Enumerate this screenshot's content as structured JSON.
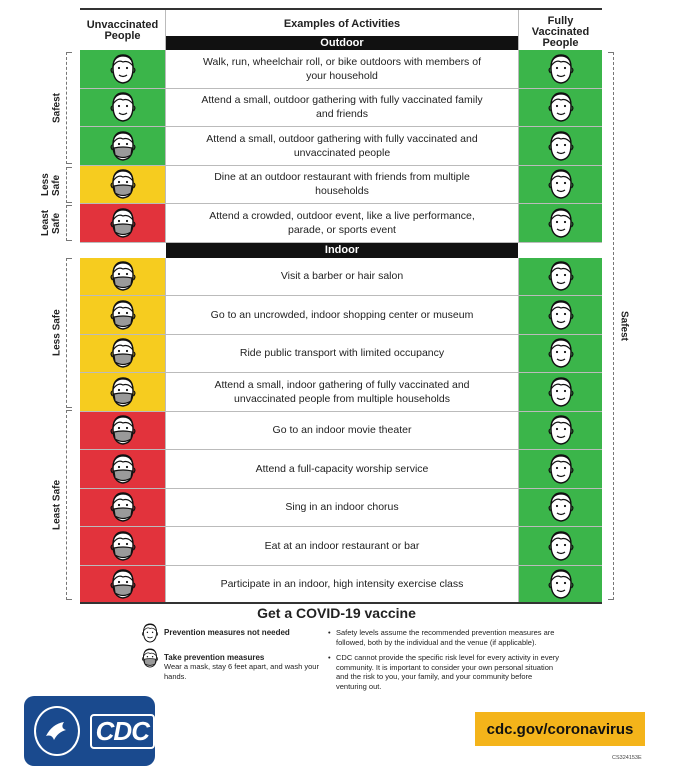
{
  "header": {
    "left": "Unvaccinated People",
    "middle": "Examples of Activities",
    "right": "Fully Vaccinated People"
  },
  "sections": {
    "outdoor": "Outdoor",
    "indoor": "Indoor"
  },
  "side_labels": {
    "safest": "Safest",
    "less_safe": "Less Safe",
    "least_safe": "Least Safe"
  },
  "colors": {
    "green": "#3bb54a",
    "yellow": "#f6cc1f",
    "red": "#e2333c"
  },
  "rows": [
    {
      "activity": "Walk, run, wheelchair roll, or bike outdoors with members of your household",
      "unvaccinated_level": "green",
      "unvaccinated_mask": false
    },
    {
      "activity": "Attend a small, outdoor gathering with fully vaccinated family and friends",
      "unvaccinated_level": "green",
      "unvaccinated_mask": false
    },
    {
      "activity": "Attend a small, outdoor gathering with fully vaccinated and unvaccinated people",
      "unvaccinated_level": "green",
      "unvaccinated_mask": true
    },
    {
      "activity": "Dine at an outdoor restaurant with friends from multiple households",
      "unvaccinated_level": "yellow",
      "unvaccinated_mask": true
    },
    {
      "activity": "Attend a crowded, outdoor event, like a live performance, parade, or sports event",
      "unvaccinated_level": "red",
      "unvaccinated_mask": true
    },
    {
      "activity": "Visit a barber or hair salon",
      "unvaccinated_level": "yellow",
      "unvaccinated_mask": true
    },
    {
      "activity": "Go to an uncrowded, indoor shopping center or museum",
      "unvaccinated_level": "yellow",
      "unvaccinated_mask": true
    },
    {
      "activity": "Ride public transport with limited occupancy",
      "unvaccinated_level": "yellow",
      "unvaccinated_mask": true
    },
    {
      "activity": "Attend a small, indoor gathering of fully vaccinated and unvaccinated people from multiple households",
      "unvaccinated_level": "yellow",
      "unvaccinated_mask": true
    },
    {
      "activity": "Go to an indoor movie theater",
      "unvaccinated_level": "red",
      "unvaccinated_mask": true
    },
    {
      "activity": "Attend a full-capacity worship service",
      "unvaccinated_level": "red",
      "unvaccinated_mask": true
    },
    {
      "activity": "Sing in an indoor chorus",
      "unvaccinated_level": "red",
      "unvaccinated_mask": true
    },
    {
      "activity": "Eat at an indoor restaurant or bar",
      "unvaccinated_level": "red",
      "unvaccinated_mask": true
    },
    {
      "activity": "Participate in an indoor, high intensity exercise class",
      "unvaccinated_level": "red",
      "unvaccinated_mask": true
    }
  ],
  "vaccine_title": "Get a COVID-19 vaccine",
  "legend": {
    "no_mask": "Prevention measures not needed",
    "mask": "Take prevention measures",
    "mask_detail": "Wear a mask, stay 6 feet apart, and wash your hands."
  },
  "notes": [
    "Safety levels assume the recommended prevention measures are followed, both by the individual and the venue (if applicable).",
    "CDC cannot provide the specific risk level for every activity in every community. It is important to consider your own personal situation and the risk to you, your family, and your community before venturing out."
  ],
  "logo": {
    "cdc": "CDC"
  },
  "url": "cdc.gov/coronavirus",
  "doc_code": "CS324153E"
}
